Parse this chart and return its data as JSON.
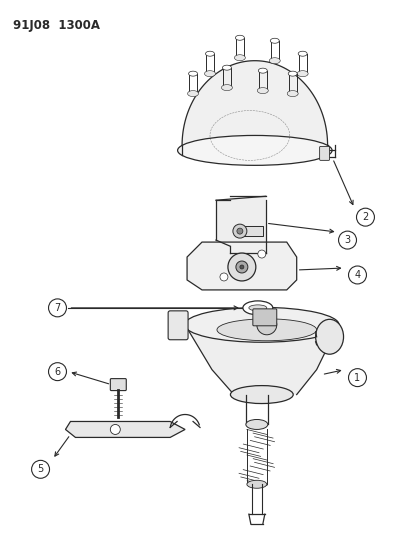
{
  "title": "91J08  1300A",
  "background_color": "#ffffff",
  "line_color": "#2a2a2a",
  "fig_width": 4.14,
  "fig_height": 5.33,
  "dpi": 100
}
